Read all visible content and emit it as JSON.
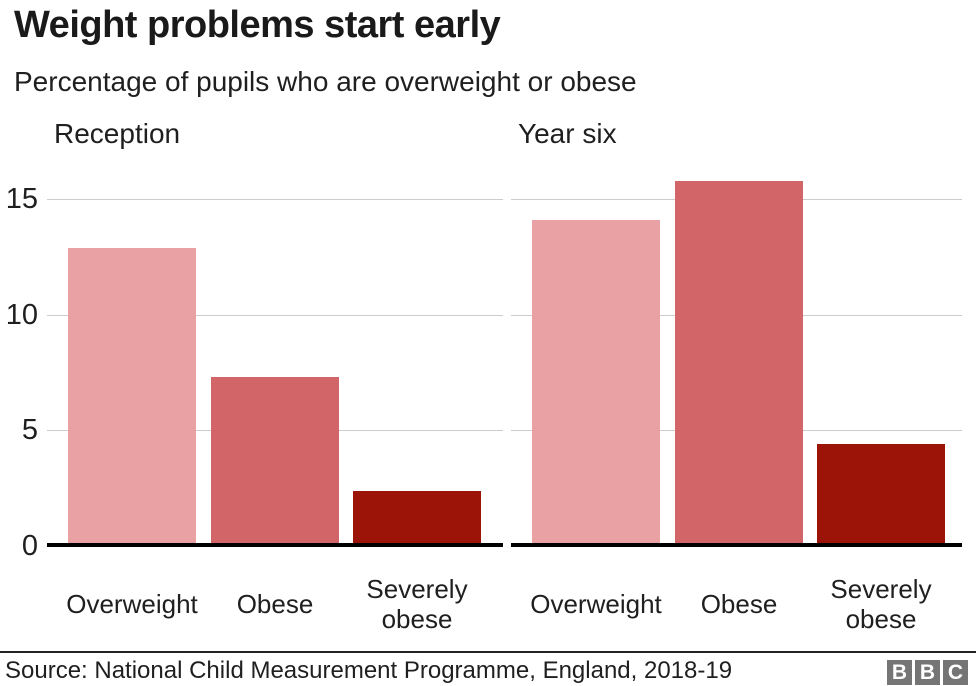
{
  "title": "Weight problems start early",
  "subtitle": "Percentage of pupils who are overweight or obese",
  "source": "Source: National Child Measurement Programme, England, 2018-19",
  "logo": {
    "blocks": [
      "B",
      "B",
      "C"
    ],
    "block_color": "#757575"
  },
  "colors": {
    "overweight": "#e9a1a4",
    "obese": "#d16568",
    "severely_obese": "#9b1407",
    "gridline": "#cccccc",
    "axis": "#000000",
    "text": "#1f1f1f"
  },
  "chart_data": {
    "type": "bar",
    "title": "Weight problems start early",
    "subtitle": "Percentage of pupils who are overweight or obese",
    "categories": [
      "Overweight",
      "Obese",
      "Severely obese"
    ],
    "panels": [
      {
        "label": "Reception",
        "values": [
          12.9,
          7.3,
          2.4
        ]
      },
      {
        "label": "Year six",
        "values": [
          14.1,
          15.8,
          4.4
        ]
      }
    ],
    "bar_colors": [
      "#e9a1a4",
      "#d16568",
      "#9b1407"
    ],
    "yticks": [
      0,
      5,
      10,
      15
    ],
    "ylim": [
      0,
      16.5
    ],
    "grid": true,
    "legend_position": "none",
    "xlabel": "",
    "ylabel": ""
  }
}
